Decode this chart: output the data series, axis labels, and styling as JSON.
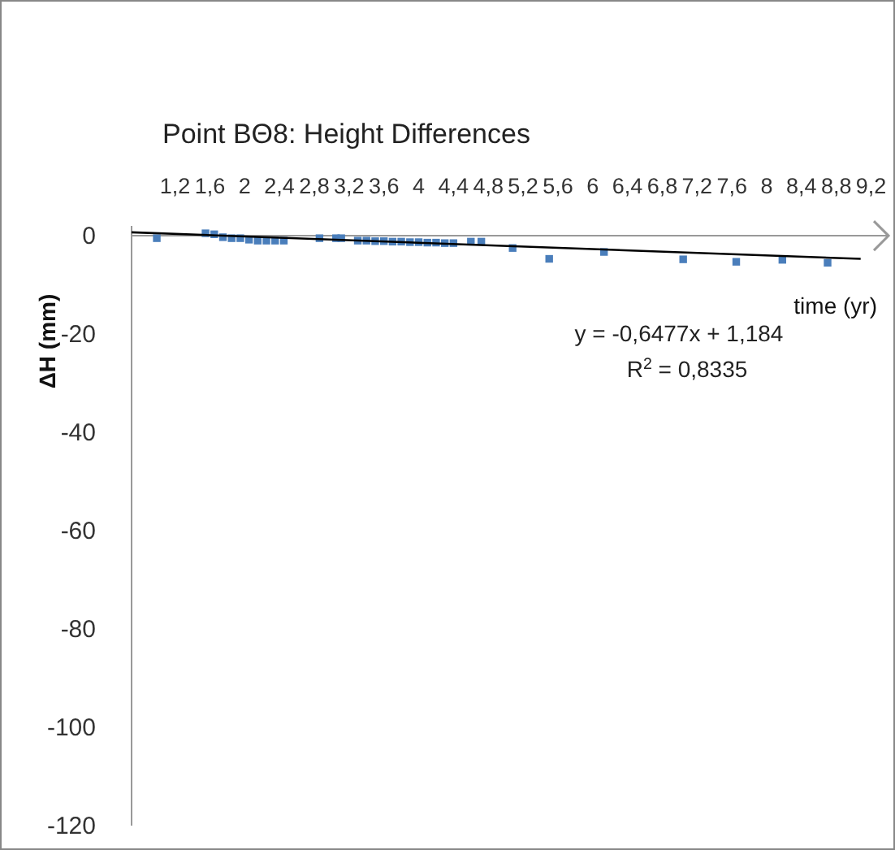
{
  "chart_data": {
    "type": "scatter",
    "title": "Point BΘ8: Height Differences",
    "xlabel": "time (yr)",
    "ylabel": "ΔH (mm)",
    "xlim": [
      0.7,
      9.4
    ],
    "xticks": [
      {
        "value": 1.2,
        "label": "1,2"
      },
      {
        "value": 1.6,
        "label": "1,6"
      },
      2,
      {
        "value": 2.4,
        "label": "2,4"
      },
      {
        "value": 2.8,
        "label": "2,8"
      },
      {
        "value": 3.2,
        "label": "3,2"
      },
      {
        "value": 3.6,
        "label": "3,6"
      },
      4,
      {
        "value": 4.4,
        "label": "4,4"
      },
      {
        "value": 4.8,
        "label": "4,8"
      },
      {
        "value": 5.2,
        "label": "5,2"
      },
      {
        "value": 5.6,
        "label": "5,6"
      },
      6,
      {
        "value": 6.4,
        "label": "6,4"
      },
      {
        "value": 6.8,
        "label": "6,8"
      },
      {
        "value": 7.2,
        "label": "7,2"
      },
      {
        "value": 7.6,
        "label": "7,6"
      },
      8,
      {
        "value": 8.4,
        "label": "8,4"
      },
      {
        "value": 8.8,
        "label": "8,8"
      },
      {
        "value": 9.2,
        "label": "9,2"
      }
    ],
    "ylim": [
      -120,
      2
    ],
    "yticks": [
      0,
      -20,
      -40,
      -60,
      -80,
      -100,
      -120
    ],
    "grid": false,
    "series": [
      {
        "marker": "square",
        "color": "#4a7ebb",
        "x": [
          0.99,
          1.55,
          1.65,
          1.75,
          1.85,
          1.95,
          2.05,
          2.15,
          2.25,
          2.35,
          2.45,
          2.86,
          3.05,
          3.11,
          3.3,
          3.4,
          3.5,
          3.6,
          3.7,
          3.8,
          3.9,
          4.0,
          4.1,
          4.2,
          4.3,
          4.4,
          4.6,
          4.72,
          5.08,
          5.5,
          6.13,
          7.04,
          7.65,
          8.18,
          8.7
        ],
        "values": [
          -0.5,
          0.5,
          0.3,
          -0.3,
          -0.5,
          -0.5,
          -0.8,
          -1,
          -1,
          -1,
          -1,
          -0.5,
          -0.5,
          -0.5,
          -1,
          -1,
          -1.1,
          -1.1,
          -1.2,
          -1.2,
          -1.3,
          -1.3,
          -1.4,
          -1.4,
          -1.5,
          -1.5,
          -1.2,
          -1.2,
          -2.5,
          -4.7,
          -3.3,
          -4.8,
          -5.3,
          -4.9,
          -5.5
        ]
      },
      {
        "type": "line",
        "color": "#000000",
        "x": [
          0.7,
          9.08
        ],
        "values": [
          0.7,
          -4.7
        ]
      }
    ],
    "annotations": [
      "y = -0,6477x + 1,184",
      "R$^{2}$ = 0,8335"
    ]
  }
}
